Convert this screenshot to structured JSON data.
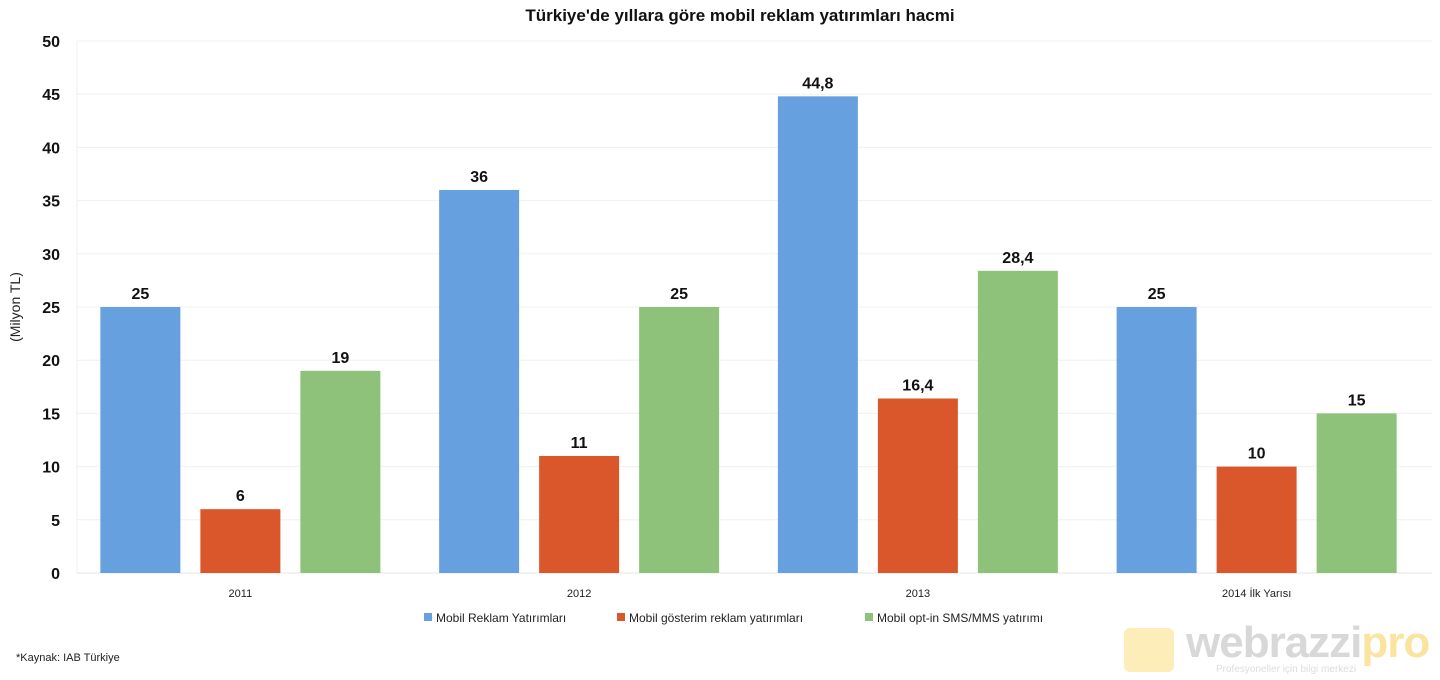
{
  "chart_data": {
    "type": "bar",
    "title": "Türkiye'de yıllara göre mobil reklam yatırımları hacmi",
    "ylabel": "(Milyon TL)",
    "xlabel": "",
    "ylim": [
      0,
      50
    ],
    "yticks": [
      0,
      5,
      10,
      15,
      20,
      25,
      30,
      35,
      40,
      45,
      50
    ],
    "grid": true,
    "legend_position": "bottom",
    "categories": [
      "2011",
      "2012",
      "2013",
      "2014 İlk Yarısı"
    ],
    "series": [
      {
        "name": "Mobil Reklam Yatırımları",
        "color": "#67a0de",
        "values": [
          25,
          36,
          44.8,
          25
        ],
        "labels": [
          "25",
          "36",
          "44,8",
          "25"
        ]
      },
      {
        "name": "Mobil gösterim reklam yatırımları",
        "color": "#d9572a",
        "values": [
          6,
          11,
          16.4,
          10
        ],
        "labels": [
          "6",
          "11",
          "16,4",
          "10"
        ]
      },
      {
        "name": "Mobil opt-in SMS/MMS yatırımı",
        "color": "#8ec27a",
        "values": [
          19,
          25,
          28.4,
          15
        ],
        "labels": [
          "19",
          "25",
          "28,4",
          "15"
        ]
      }
    ]
  },
  "source": "*Kaynak: IAB Türkiye",
  "watermark": {
    "brand": "webrazzi",
    "suffix": "pro",
    "tagline": "Profesyoneller için bilgi merkezi"
  }
}
